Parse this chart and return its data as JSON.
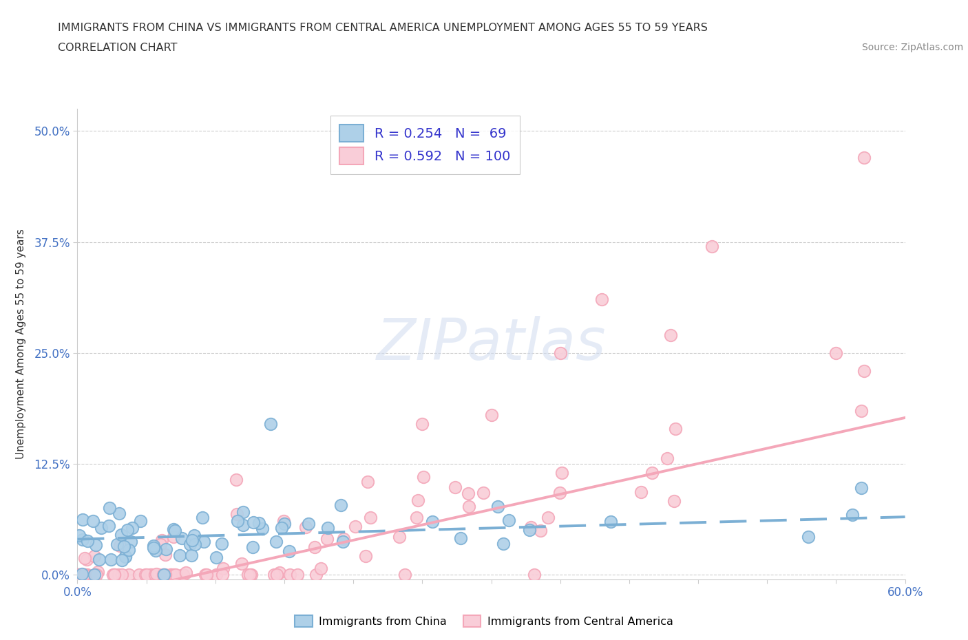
{
  "title_line1": "IMMIGRANTS FROM CHINA VS IMMIGRANTS FROM CENTRAL AMERICA UNEMPLOYMENT AMONG AGES 55 TO 59 YEARS",
  "title_line2": "CORRELATION CHART",
  "source_text": "Source: ZipAtlas.com",
  "ylabel": "Unemployment Among Ages 55 to 59 years",
  "xlim": [
    0.0,
    0.6
  ],
  "ylim": [
    -0.005,
    0.525
  ],
  "ytick_positions": [
    0.0,
    0.125,
    0.25,
    0.375,
    0.5
  ],
  "ytick_labels": [
    "0.0%",
    "12.5%",
    "25.0%",
    "37.5%",
    "50.0%"
  ],
  "xtick_positions": [
    0.0,
    0.05,
    0.1,
    0.15,
    0.2,
    0.25,
    0.3,
    0.35,
    0.4,
    0.45,
    0.5,
    0.55,
    0.6
  ],
  "xtick_labels": [
    "0.0%",
    "",
    "",
    "",
    "",
    "",
    "",
    "",
    "",
    "",
    "",
    "",
    "60.0%"
  ],
  "china_color": "#7BAFD4",
  "china_color_fill": "#AED0E8",
  "central_america_color": "#F4A7B9",
  "central_america_color_fill": "#F9CDD8",
  "china_R": 0.254,
  "china_N": 69,
  "central_america_R": 0.592,
  "central_america_N": 100,
  "watermark": "ZIPatlas",
  "grid_color": "#CCCCCC",
  "background_color": "#FFFFFF",
  "legend_text_color": "#3333CC",
  "title_color": "#333333",
  "axis_label_color": "#333333",
  "tick_color": "#4472C4",
  "china_line_intercept": 0.04,
  "china_line_slope": 0.042,
  "ca_line_intercept": -0.03,
  "ca_line_slope": 0.345
}
